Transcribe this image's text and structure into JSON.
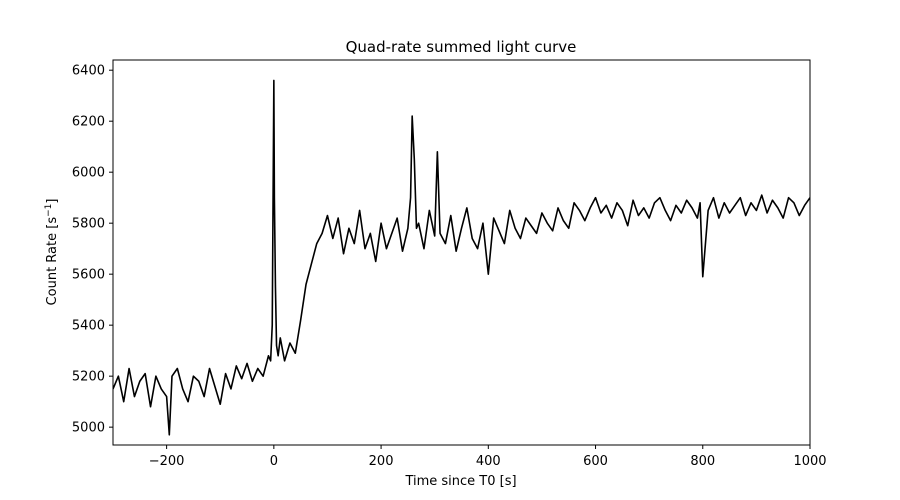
{
  "chart_data": {
    "type": "line",
    "title": "Quad-rate summed light curve",
    "xlabel": "Time since T0 [s]",
    "ylabel": "Count Rate [s",
    "ylabel_sup": "−1",
    "ylabel_end": "]",
    "xlim": [
      -300,
      1000
    ],
    "ylim": [
      4930,
      6440
    ],
    "xticks": [
      -200,
      0,
      200,
      400,
      600,
      800,
      1000
    ],
    "xtick_labels": [
      "−200",
      "0",
      "200",
      "400",
      "600",
      "800",
      "1000"
    ],
    "yticks": [
      5000,
      5200,
      5400,
      5600,
      5800,
      6000,
      6200,
      6400
    ],
    "yticks_labels": [
      "5000",
      "5200",
      "5400",
      "5600",
      "5800",
      "6000",
      "6200",
      "6400"
    ],
    "grid": false,
    "line_color": "#000000",
    "series": [
      {
        "x": [
          -300,
          -290,
          -280,
          -270,
          -260,
          -250,
          -240,
          -230,
          -220,
          -210,
          -200,
          -195,
          -190,
          -180,
          -170,
          -160,
          -150,
          -140,
          -130,
          -120,
          -110,
          -100,
          -90,
          -80,
          -70,
          -60,
          -50,
          -40,
          -30,
          -20,
          -10,
          -6,
          -3,
          0,
          1,
          3,
          5,
          8,
          12,
          20,
          30,
          40,
          50,
          60,
          70,
          80,
          90,
          100,
          110,
          120,
          130,
          140,
          150,
          160,
          170,
          180,
          190,
          200,
          210,
          220,
          230,
          240,
          250,
          255,
          258,
          262,
          266,
          270,
          280,
          290,
          300,
          305,
          310,
          320,
          330,
          340,
          350,
          360,
          370,
          380,
          390,
          400,
          410,
          420,
          430,
          440,
          450,
          460,
          470,
          480,
          490,
          500,
          510,
          520,
          530,
          540,
          550,
          560,
          570,
          580,
          590,
          600,
          610,
          620,
          630,
          640,
          650,
          660,
          670,
          680,
          690,
          700,
          710,
          720,
          730,
          740,
          750,
          760,
          770,
          780,
          790,
          795,
          800,
          810,
          820,
          830,
          840,
          850,
          860,
          870,
          880,
          890,
          900,
          910,
          920,
          930,
          940,
          950,
          960,
          970,
          980,
          990,
          1000
        ],
        "y": [
          5150,
          5200,
          5100,
          5230,
          5120,
          5180,
          5210,
          5080,
          5200,
          5150,
          5120,
          4970,
          5200,
          5230,
          5150,
          5100,
          5200,
          5180,
          5120,
          5230,
          5160,
          5090,
          5210,
          5150,
          5240,
          5190,
          5250,
          5180,
          5230,
          5200,
          5280,
          5260,
          5400,
          6360,
          5900,
          5550,
          5320,
          5280,
          5350,
          5260,
          5330,
          5290,
          5420,
          5560,
          5640,
          5720,
          5760,
          5830,
          5740,
          5820,
          5680,
          5780,
          5720,
          5850,
          5700,
          5760,
          5650,
          5800,
          5700,
          5760,
          5820,
          5690,
          5780,
          5900,
          6220,
          6050,
          5780,
          5800,
          5700,
          5850,
          5750,
          6080,
          5760,
          5720,
          5830,
          5690,
          5780,
          5860,
          5740,
          5700,
          5800,
          5600,
          5820,
          5770,
          5720,
          5850,
          5780,
          5740,
          5820,
          5790,
          5760,
          5840,
          5800,
          5770,
          5860,
          5810,
          5780,
          5880,
          5850,
          5810,
          5860,
          5900,
          5840,
          5870,
          5820,
          5880,
          5850,
          5790,
          5890,
          5830,
          5860,
          5820,
          5880,
          5900,
          5850,
          5810,
          5870,
          5840,
          5890,
          5860,
          5820,
          5880,
          5590,
          5850,
          5900,
          5820,
          5880,
          5840,
          5870,
          5900,
          5830,
          5880,
          5850,
          5910,
          5840,
          5890,
          5860,
          5820,
          5900,
          5880,
          5830,
          5870,
          5900
        ]
      }
    ]
  }
}
